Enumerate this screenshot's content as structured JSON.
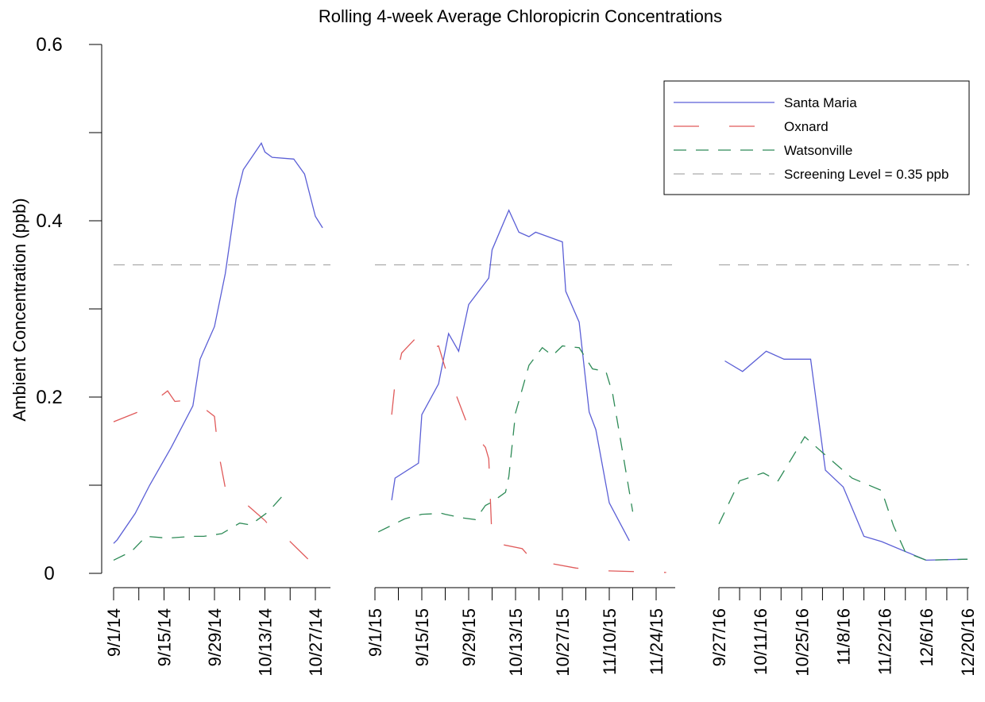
{
  "chart_data": {
    "type": "line",
    "title": "Rolling 4-week Average Chloropicrin Concentrations",
    "y_label": "Ambient Concentration (ppb)",
    "ylim": [
      0,
      0.6
    ],
    "yticks": [
      0,
      {
        "value": 0.1,
        "label": null
      },
      0.2,
      {
        "value": 0.3,
        "label": null
      },
      0.4,
      {
        "value": 0.5,
        "label": null
      },
      0.6
    ],
    "series": [
      {
        "name": "Santa Maria",
        "color": "#5b5fd6"
      },
      {
        "name": "Oxnard",
        "color": "#e05a5a"
      },
      {
        "name": "Watsonville",
        "color": "#2e8b57"
      }
    ],
    "reference": {
      "label": "Screening Level = 0.35 ppb",
      "value": 0.35,
      "color": "#aaaaaa"
    },
    "legend": "top-right",
    "panels": [
      {
        "xlim": [
          "9/1/14",
          "10/27/14"
        ],
        "xticks": [
          "9/1/14",
          {
            "value": "9/8/14",
            "label": null
          },
          "9/15/14",
          {
            "value": "9/22/14",
            "label": null
          },
          "9/29/14",
          {
            "value": "10/6/14",
            "label": null
          },
          "10/13/14",
          {
            "value": "10/20/14",
            "label": null
          },
          "10/27/14"
        ],
        "series": [
          {
            "x": [
              "9/1/14",
              "9/2/14",
              "9/7/14",
              "9/11/14",
              "9/17/14",
              "9/23/14",
              "9/25/14",
              "9/29/14",
              "10/2/14",
              "10/5/14",
              "10/7/14",
              "10/12/14",
              "10/13/14",
              "10/15/14",
              "10/21/14",
              "10/24/14",
              "10/27/14",
              "10/29/14"
            ],
            "values": [
              0.034,
              0.038,
              0.068,
              0.1,
              0.143,
              0.19,
              0.243,
              0.28,
              0.34,
              0.425,
              0.458,
              0.488,
              0.478,
              0.472,
              0.47,
              0.453,
              0.405,
              0.392
            ]
          },
          {
            "x": [
              "9/1/14",
              "9/9/14",
              "9/16/14",
              "9/18/14",
              "9/23/14",
              "9/29/14",
              "9/30/14",
              "10/2/14",
              "10/6/14",
              "10/13/14",
              "10/16/14",
              "10/19/14",
              "10/26/14",
              "10/29/14"
            ],
            "values": [
              0.172,
              0.185,
              0.207,
              0.195,
              0.197,
              0.178,
              0.14,
              0.097,
              0.085,
              0.06,
              0.045,
              0.04,
              0.012,
              0.01
            ]
          },
          {
            "x": [
              "9/1/14",
              "9/6/14",
              "9/10/14",
              "9/16/14",
              "9/23/14",
              "9/26/14",
              "10/1/14",
              "10/6/14",
              "10/9/14",
              "10/14/14",
              "10/19/14"
            ],
            "values": [
              0.015,
              0.025,
              0.042,
              0.04,
              0.042,
              0.042,
              0.045,
              0.057,
              0.055,
              0.07,
              0.093
            ]
          }
        ]
      },
      {
        "xlim": [
          "9/1/15",
          "11/24/15"
        ],
        "xticks": [
          "9/1/15",
          {
            "value": "9/8/15",
            "label": null
          },
          "9/15/15",
          {
            "value": "9/22/15",
            "label": null
          },
          "9/29/15",
          {
            "value": "10/6/15",
            "label": null
          },
          "10/13/15",
          {
            "value": "10/20/15",
            "label": null
          },
          "10/27/15",
          {
            "value": "11/3/15",
            "label": null
          },
          "11/10/15",
          {
            "value": "11/17/15",
            "label": null
          },
          "11/24/15"
        ],
        "series": [
          {
            "x": [
              "9/6/15",
              "9/7/15",
              "9/14/15",
              "9/15/15",
              "9/20/15",
              "9/23/15",
              "9/26/15",
              "9/29/15",
              "10/5/15",
              "10/6/15",
              "10/11/15",
              "10/14/15",
              "10/17/15",
              "10/19/15",
              "10/27/15",
              "10/28/15",
              "11/1/15",
              "11/4/15",
              "11/6/15",
              "11/10/15",
              "11/16/15"
            ],
            "values": [
              0.083,
              0.108,
              0.125,
              0.18,
              0.215,
              0.272,
              0.252,
              0.305,
              0.335,
              0.367,
              0.412,
              0.387,
              0.382,
              0.387,
              0.376,
              0.32,
              0.285,
              0.183,
              0.163,
              0.08,
              0.037
            ]
          },
          {
            "x": [
              "9/6/15",
              "9/7/15",
              "9/9/15",
              "9/14/15",
              "9/18/15",
              "9/20/15",
              "9/22/15",
              "9/25/15",
              "9/29/15",
              "10/4/15",
              "10/5/15",
              "10/6/15",
              "10/15/15",
              "10/18/15",
              "10/21/15",
              "10/31/15",
              "11/8/15",
              "11/18/15",
              "11/27/15"
            ],
            "values": [
              0.18,
              0.216,
              0.25,
              0.27,
              0.255,
              0.258,
              0.233,
              0.205,
              0.165,
              0.143,
              0.13,
              0.035,
              0.028,
              0.015,
              0.013,
              0.006,
              0.003,
              0.002,
              0.001
            ]
          },
          {
            "x": [
              "9/2/15",
              "9/10/15",
              "9/15/15",
              "9/21/15",
              "9/22/15",
              "9/27/15",
              "10/1/15",
              "10/4/15",
              "10/6/15",
              "10/10/15",
              "10/11/15",
              "10/13/15",
              "10/17/15",
              "10/21/15",
              "10/24/15",
              "10/27/15",
              "11/1/15",
              "11/5/15",
              "11/9/15",
              "11/11/15",
              "11/14/15",
              "11/17/15"
            ],
            "values": [
              0.047,
              0.062,
              0.067,
              0.068,
              0.067,
              0.063,
              0.061,
              0.077,
              0.081,
              0.092,
              0.11,
              0.182,
              0.236,
              0.256,
              0.247,
              0.258,
              0.256,
              0.232,
              0.229,
              0.204,
              0.137,
              0.07
            ]
          }
        ]
      },
      {
        "xlim": [
          "9/27/16",
          "12/20/16"
        ],
        "xticks": [
          "9/27/16",
          {
            "value": "10/4/16",
            "label": null
          },
          "10/11/16",
          {
            "value": "10/18/16",
            "label": null
          },
          "10/25/16",
          {
            "value": "11/1/16",
            "label": null
          },
          "11/8/16",
          {
            "value": "11/15/16",
            "label": null
          },
          "11/22/16",
          {
            "value": "11/29/16",
            "label": null
          },
          "12/6/16",
          {
            "value": "12/13/16",
            "label": null
          },
          "12/20/16"
        ],
        "series": [
          {
            "x": [
              "9/29/16",
              "10/5/16",
              "10/13/16",
              "10/19/16",
              "10/28/16",
              "11/2/16",
              "11/8/16",
              "11/15/16",
              "11/21/16",
              "12/6/16",
              "12/20/16"
            ],
            "values": [
              0.241,
              0.229,
              0.252,
              0.243,
              0.243,
              0.117,
              0.098,
              0.042,
              0.036,
              0.015,
              0.016
            ]
          },
          {
            "x": [],
            "values": []
          },
          {
            "x": [
              "9/27/16",
              "10/4/16",
              "10/12/16",
              "10/17/16",
              "10/26/16",
              "11/1/16",
              "11/11/16",
              "11/21/16",
              "11/25/16",
              "11/29/16",
              "12/6/16",
              "12/20/16"
            ],
            "values": [
              0.056,
              0.105,
              0.114,
              0.105,
              0.155,
              0.137,
              0.108,
              0.094,
              0.054,
              0.024,
              0.015,
              0.016
            ]
          }
        ]
      }
    ]
  }
}
